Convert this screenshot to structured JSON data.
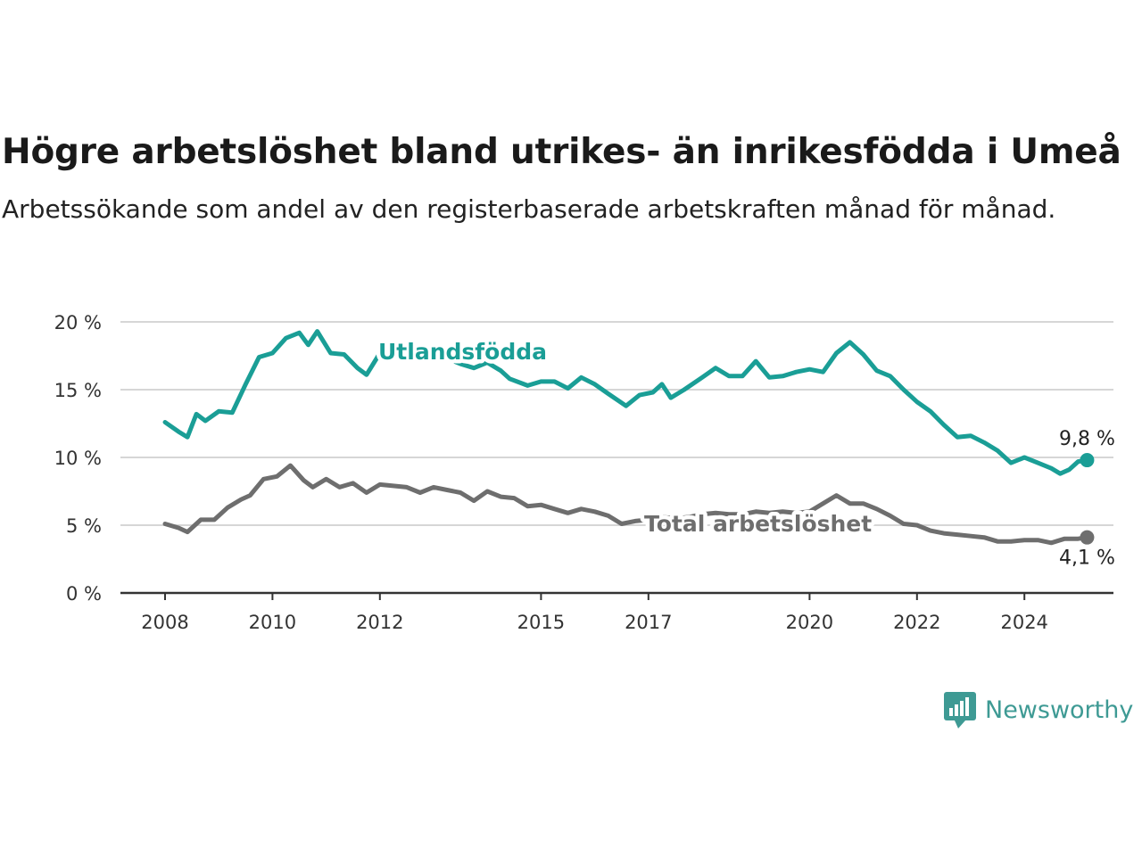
{
  "header": {
    "title": "Högre arbetslöshet bland utrikes- än inrikesfödda i Umeå",
    "subtitle": "Arbetssökande som andel av den registerbaserade arbetskraften månad för månad."
  },
  "brand": {
    "name": "Newsworthy",
    "icon": "newsworthy-logo-icon",
    "color": "#3e9a94"
  },
  "chart_data": {
    "type": "line",
    "ylim": [
      0,
      20
    ],
    "yticks": [
      0,
      5,
      10,
      15,
      20
    ],
    "ytick_labels": [
      "0 %",
      "5 %",
      "10 %",
      "15 %",
      "20 %"
    ],
    "xlim": [
      "2008-01",
      "2025-05"
    ],
    "xticks": [
      "2008",
      "2010",
      "2012",
      "2015",
      "2017",
      "2020",
      "2022",
      "2024"
    ],
    "grid": true,
    "series": [
      {
        "name": "Utlandsfödda",
        "color": "#1a9e96",
        "end_label": "9,8 %",
        "points": [
          [
            "2008-01",
            12.6
          ],
          [
            "2008-04",
            11.9
          ],
          [
            "2008-06",
            11.5
          ],
          [
            "2008-08",
            13.2
          ],
          [
            "2008-10",
            12.7
          ],
          [
            "2009-01",
            13.4
          ],
          [
            "2009-04",
            13.3
          ],
          [
            "2009-07",
            15.4
          ],
          [
            "2009-10",
            17.4
          ],
          [
            "2010-01",
            17.7
          ],
          [
            "2010-04",
            18.8
          ],
          [
            "2010-07",
            19.2
          ],
          [
            "2010-09",
            18.3
          ],
          [
            "2010-11",
            19.3
          ],
          [
            "2011-02",
            17.7
          ],
          [
            "2011-05",
            17.6
          ],
          [
            "2011-08",
            16.6
          ],
          [
            "2011-10",
            16.1
          ],
          [
            "2012-01",
            17.7
          ],
          [
            "2012-04",
            17.9
          ],
          [
            "2012-07",
            18.0
          ],
          [
            "2012-10",
            17.9
          ],
          [
            "2013-01",
            17.8
          ],
          [
            "2013-04",
            17.3
          ],
          [
            "2013-07",
            16.9
          ],
          [
            "2013-10",
            16.6
          ],
          [
            "2014-01",
            17.0
          ],
          [
            "2014-04",
            16.4
          ],
          [
            "2014-06",
            15.8
          ],
          [
            "2014-10",
            15.3
          ],
          [
            "2015-01",
            15.6
          ],
          [
            "2015-04",
            15.6
          ],
          [
            "2015-07",
            15.1
          ],
          [
            "2015-10",
            15.9
          ],
          [
            "2016-01",
            15.4
          ],
          [
            "2016-04",
            14.7
          ],
          [
            "2016-08",
            13.8
          ],
          [
            "2016-11",
            14.6
          ],
          [
            "2017-02",
            14.8
          ],
          [
            "2017-04",
            15.4
          ],
          [
            "2017-06",
            14.4
          ],
          [
            "2017-09",
            15.0
          ],
          [
            "2018-01",
            15.9
          ],
          [
            "2018-04",
            16.6
          ],
          [
            "2018-07",
            16.0
          ],
          [
            "2018-10",
            16.0
          ],
          [
            "2019-01",
            17.1
          ],
          [
            "2019-04",
            15.9
          ],
          [
            "2019-07",
            16.0
          ],
          [
            "2019-10",
            16.3
          ],
          [
            "2020-01",
            16.5
          ],
          [
            "2020-04",
            16.3
          ],
          [
            "2020-07",
            17.7
          ],
          [
            "2020-10",
            18.5
          ],
          [
            "2021-01",
            17.6
          ],
          [
            "2021-04",
            16.4
          ],
          [
            "2021-07",
            16.0
          ],
          [
            "2021-10",
            15.0
          ],
          [
            "2022-01",
            14.1
          ],
          [
            "2022-04",
            13.4
          ],
          [
            "2022-07",
            12.4
          ],
          [
            "2022-10",
            11.5
          ],
          [
            "2023-01",
            11.6
          ],
          [
            "2023-04",
            11.1
          ],
          [
            "2023-07",
            10.5
          ],
          [
            "2023-10",
            9.6
          ],
          [
            "2024-01",
            10.0
          ],
          [
            "2024-04",
            9.6
          ],
          [
            "2024-07",
            9.2
          ],
          [
            "2024-09",
            8.8
          ],
          [
            "2024-11",
            9.1
          ],
          [
            "2025-01",
            9.7
          ],
          [
            "2025-03",
            9.8
          ]
        ]
      },
      {
        "name": "Total arbetslöshet",
        "color": "#6e6e6e",
        "end_label": "4,1 %",
        "points": [
          [
            "2008-01",
            5.1
          ],
          [
            "2008-04",
            4.8
          ],
          [
            "2008-06",
            4.5
          ],
          [
            "2008-09",
            5.4
          ],
          [
            "2008-12",
            5.4
          ],
          [
            "2009-03",
            6.3
          ],
          [
            "2009-06",
            6.9
          ],
          [
            "2009-08",
            7.2
          ],
          [
            "2009-11",
            8.4
          ],
          [
            "2010-02",
            8.6
          ],
          [
            "2010-05",
            9.4
          ],
          [
            "2010-08",
            8.3
          ],
          [
            "2010-10",
            7.8
          ],
          [
            "2011-01",
            8.4
          ],
          [
            "2011-04",
            7.8
          ],
          [
            "2011-07",
            8.1
          ],
          [
            "2011-10",
            7.4
          ],
          [
            "2012-01",
            8.0
          ],
          [
            "2012-04",
            7.9
          ],
          [
            "2012-07",
            7.8
          ],
          [
            "2012-10",
            7.4
          ],
          [
            "2013-01",
            7.8
          ],
          [
            "2013-04",
            7.6
          ],
          [
            "2013-07",
            7.4
          ],
          [
            "2013-10",
            6.8
          ],
          [
            "2014-01",
            7.5
          ],
          [
            "2014-04",
            7.1
          ],
          [
            "2014-07",
            7.0
          ],
          [
            "2014-10",
            6.4
          ],
          [
            "2015-01",
            6.5
          ],
          [
            "2015-04",
            6.2
          ],
          [
            "2015-07",
            5.9
          ],
          [
            "2015-10",
            6.2
          ],
          [
            "2016-01",
            6.0
          ],
          [
            "2016-04",
            5.7
          ],
          [
            "2016-07",
            5.1
          ],
          [
            "2016-10",
            5.3
          ],
          [
            "2017-01",
            5.4
          ],
          [
            "2017-04",
            5.6
          ],
          [
            "2017-07",
            5.5
          ],
          [
            "2017-10",
            5.6
          ],
          [
            "2018-01",
            5.8
          ],
          [
            "2018-04",
            5.9
          ],
          [
            "2018-07",
            5.8
          ],
          [
            "2018-10",
            5.8
          ],
          [
            "2019-01",
            6.0
          ],
          [
            "2019-04",
            5.9
          ],
          [
            "2019-07",
            6.0
          ],
          [
            "2019-10",
            5.9
          ],
          [
            "2020-01",
            6.0
          ],
          [
            "2020-04",
            6.6
          ],
          [
            "2020-07",
            7.2
          ],
          [
            "2020-10",
            6.6
          ],
          [
            "2021-01",
            6.6
          ],
          [
            "2021-04",
            6.2
          ],
          [
            "2021-07",
            5.7
          ],
          [
            "2021-10",
            5.1
          ],
          [
            "2022-01",
            5.0
          ],
          [
            "2022-04",
            4.6
          ],
          [
            "2022-07",
            4.4
          ],
          [
            "2022-10",
            4.3
          ],
          [
            "2023-01",
            4.2
          ],
          [
            "2023-04",
            4.1
          ],
          [
            "2023-07",
            3.8
          ],
          [
            "2023-10",
            3.8
          ],
          [
            "2024-01",
            3.9
          ],
          [
            "2024-04",
            3.9
          ],
          [
            "2024-07",
            3.7
          ],
          [
            "2024-10",
            4.0
          ],
          [
            "2025-01",
            4.0
          ],
          [
            "2025-03",
            4.1
          ]
        ]
      }
    ]
  }
}
